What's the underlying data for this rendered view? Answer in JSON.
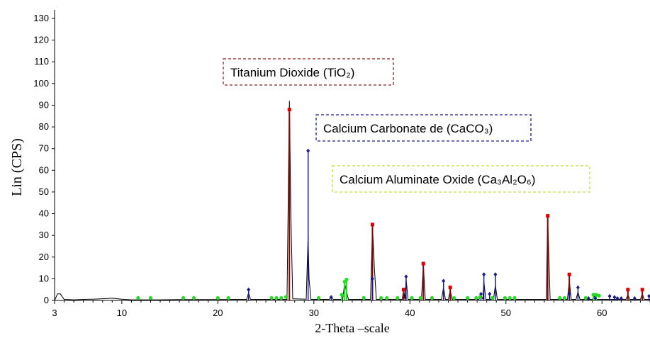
{
  "chart_data": {
    "type": "line",
    "title": "",
    "xlabel": "2-Theta –scale",
    "ylabel": "Lin (CPS)",
    "xlim": [
      3,
      65
    ],
    "ylim": [
      0,
      130
    ],
    "xticks": [
      3,
      10,
      20,
      30,
      40,
      50,
      60
    ],
    "yticks": [
      0,
      10,
      20,
      30,
      40,
      50,
      60,
      70,
      80,
      90,
      100,
      110,
      120,
      130
    ],
    "grid": false,
    "pattern_profile": [
      [
        3,
        0
      ],
      [
        3.3,
        3
      ],
      [
        3.6,
        3
      ],
      [
        4,
        0.5
      ],
      [
        5,
        0.3
      ],
      [
        6,
        0.5
      ],
      [
        7,
        0.6
      ],
      [
        8,
        0.8
      ],
      [
        9,
        1.0
      ],
      [
        10,
        0.6
      ],
      [
        11,
        0.3
      ],
      [
        12,
        0.3
      ],
      [
        14,
        0.3
      ],
      [
        16,
        0.4
      ],
      [
        18,
        0.4
      ],
      [
        20,
        0.4
      ],
      [
        22,
        0.5
      ],
      [
        23.0,
        0.5
      ],
      [
        23.2,
        3.5
      ],
      [
        23.4,
        0.5
      ],
      [
        25,
        0.5
      ],
      [
        27.2,
        0.5
      ],
      [
        27.45,
        92
      ],
      [
        27.6,
        40
      ],
      [
        27.8,
        0.8
      ],
      [
        29.2,
        0.6
      ],
      [
        29.4,
        30
      ],
      [
        29.5,
        10
      ],
      [
        29.7,
        0.5
      ],
      [
        31.6,
        0.5
      ],
      [
        31.8,
        1.8
      ],
      [
        32.0,
        0.5
      ],
      [
        33.0,
        0.5
      ],
      [
        33.2,
        8
      ],
      [
        33.4,
        4
      ],
      [
        33.6,
        0.5
      ],
      [
        35.9,
        0.5
      ],
      [
        36.1,
        34
      ],
      [
        36.3,
        15
      ],
      [
        36.5,
        0.5
      ],
      [
        39.2,
        0.5
      ],
      [
        39.35,
        5
      ],
      [
        39.5,
        0.5
      ],
      [
        39.6,
        10
      ],
      [
        39.8,
        0.5
      ],
      [
        41.2,
        0.5
      ],
      [
        41.4,
        16
      ],
      [
        41.6,
        0.5
      ],
      [
        43.3,
        0.5
      ],
      [
        43.5,
        6
      ],
      [
        43.7,
        0.5
      ],
      [
        44.0,
        0.5
      ],
      [
        44.2,
        4.5
      ],
      [
        44.4,
        0.5
      ],
      [
        47.2,
        0.5
      ],
      [
        47.4,
        2.5
      ],
      [
        47.6,
        0.5
      ],
      [
        47.7,
        9
      ],
      [
        47.9,
        0.5
      ],
      [
        48.7,
        0.5
      ],
      [
        48.9,
        7
      ],
      [
        49.1,
        0.5
      ],
      [
        54.2,
        0.5
      ],
      [
        54.35,
        38
      ],
      [
        54.6,
        0.5
      ],
      [
        56.4,
        0.5
      ],
      [
        56.6,
        9
      ],
      [
        56.8,
        0.5
      ],
      [
        57.3,
        0.5
      ],
      [
        57.5,
        4
      ],
      [
        57.7,
        0.5
      ],
      [
        59.0,
        0.5
      ],
      [
        59.2,
        2
      ],
      [
        59.4,
        0.5
      ],
      [
        62.5,
        0.5
      ],
      [
        62.7,
        2.5
      ],
      [
        62.9,
        0.5
      ],
      [
        64.0,
        0.5
      ],
      [
        64.2,
        3
      ],
      [
        64.4,
        0.5
      ],
      [
        65,
        0.5
      ]
    ],
    "series": [
      {
        "name": "Titanium Dioxide (TiO2)",
        "color": "#8b0000",
        "marker": "square",
        "points": [
          [
            27.45,
            88
          ],
          [
            36.1,
            35
          ],
          [
            39.35,
            5
          ],
          [
            41.4,
            17
          ],
          [
            44.2,
            6
          ],
          [
            54.35,
            39
          ],
          [
            56.6,
            12
          ],
          [
            62.7,
            5
          ],
          [
            64.2,
            5
          ]
        ]
      },
      {
        "name": "Calcium Carbonate de (CaCO3)",
        "color": "#1a1a8c",
        "marker": "diamond",
        "points": [
          [
            23.2,
            5
          ],
          [
            29.4,
            69
          ],
          [
            31.8,
            1.5
          ],
          [
            36.1,
            10
          ],
          [
            39.6,
            11
          ],
          [
            43.5,
            9
          ],
          [
            47.4,
            3
          ],
          [
            47.7,
            12
          ],
          [
            48.3,
            3
          ],
          [
            48.9,
            12
          ],
          [
            56.6,
            3
          ],
          [
            57.5,
            6
          ],
          [
            58.6,
            1
          ],
          [
            59.3,
            1
          ],
          [
            60.8,
            2
          ],
          [
            61.3,
            1.5
          ],
          [
            61.6,
            1
          ],
          [
            62.0,
            1
          ],
          [
            63.4,
            1
          ],
          [
            64.9,
            2
          ]
        ]
      },
      {
        "name": "Calcium Aluminate Oxide (Ca3Al2O6)",
        "color": "#22dd22",
        "marker": "circle",
        "points": [
          [
            11.7,
            0.5
          ],
          [
            13.0,
            0.5
          ],
          [
            16.4,
            0.5
          ],
          [
            17.5,
            0.5
          ],
          [
            20.0,
            0.5
          ],
          [
            21.1,
            0.5
          ],
          [
            25.6,
            0.5
          ],
          [
            26.1,
            0.5
          ],
          [
            26.6,
            0.5
          ],
          [
            27.1,
            1
          ],
          [
            30.5,
            0.5
          ],
          [
            32.9,
            2
          ],
          [
            33.2,
            8
          ],
          [
            33.4,
            9
          ],
          [
            35.2,
            0.5
          ],
          [
            37.0,
            0.5
          ],
          [
            37.6,
            0.5
          ],
          [
            38.7,
            0.5
          ],
          [
            40.2,
            0.5
          ],
          [
            41.1,
            0.5
          ],
          [
            42.3,
            0.5
          ],
          [
            44.6,
            0.5
          ],
          [
            46.0,
            0.5
          ],
          [
            46.9,
            0.5
          ],
          [
            47.3,
            1
          ],
          [
            48.6,
            0.5
          ],
          [
            49.9,
            0.5
          ],
          [
            50.4,
            0.5
          ],
          [
            50.9,
            0.5
          ],
          [
            55.6,
            0.5
          ],
          [
            56.1,
            0.5
          ],
          [
            58.3,
            0.5
          ],
          [
            59.1,
            2
          ],
          [
            59.4,
            2
          ],
          [
            59.7,
            1.5
          ]
        ]
      }
    ],
    "annotations": [
      {
        "text": "Titanium Dioxide (TiO₂)",
        "color": "#8b2020",
        "dash": "dashed"
      },
      {
        "text": "Calcium Carbonate de (CaCO₃)",
        "color": "#1a1a8c",
        "dash": "dashed"
      },
      {
        "text": "Calcium Aluminate Oxide (Ca₃Al₂O₆)",
        "color": "#c8dc3c",
        "dash": "dashed"
      }
    ]
  }
}
